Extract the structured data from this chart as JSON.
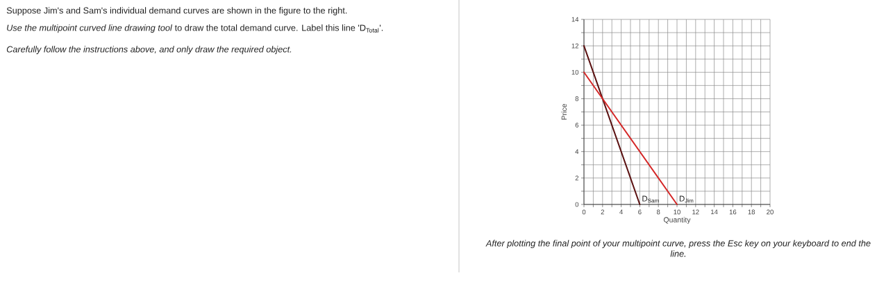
{
  "chart_data": {
    "type": "line",
    "annotations": [
      "Suppose Jim's and Sam's individual demand curves are shown in the figure to the right.",
      "*Use the multipoint curved line drawing tool* to draw the total demand curve. Label this line 'D$_{Total}$'.",
      "Carefully follow the instructions above, and only draw the required object.",
      "After plotting the final point of your multipoint curve, press the Esc key on your keyboard to end the line."
    ],
    "xlabel": "Quantity",
    "ylabel": "Price",
    "series": [
      {
        "name": "D$_{Sam}$",
        "color": "#5a1010",
        "x": [
          0,
          6
        ],
        "values": [
          12,
          0
        ]
      },
      {
        "name": "D$_{Jim}$",
        "color": "#d42626",
        "x": [
          0,
          10
        ],
        "values": [
          10,
          0
        ]
      }
    ],
    "xlim": [
      0,
      20
    ],
    "ylim": [
      0,
      14
    ],
    "xticks": [
      0,
      {
        "value": 1,
        "label": null
      },
      2,
      {
        "value": 3,
        "label": null
      },
      4,
      {
        "value": 5,
        "label": null
      },
      6,
      {
        "value": 7,
        "label": null
      },
      8,
      {
        "value": 9,
        "label": null
      },
      10,
      {
        "value": 11,
        "label": null
      },
      12,
      {
        "value": 13,
        "label": null
      },
      14,
      {
        "value": 15,
        "label": null
      },
      16,
      {
        "value": 17,
        "label": null
      },
      18,
      {
        "value": 19,
        "label": null
      },
      20
    ],
    "yticks": [
      0,
      {
        "value": 1,
        "label": null
      },
      2,
      {
        "value": 3,
        "label": null
      },
      4,
      {
        "value": 5,
        "label": null
      },
      6,
      {
        "value": 7,
        "label": null
      },
      8,
      {
        "value": 9,
        "label": null
      },
      10,
      {
        "value": 11,
        "label": null
      },
      12,
      {
        "value": 13,
        "label": null
      },
      14
    ],
    "grid": true
  }
}
